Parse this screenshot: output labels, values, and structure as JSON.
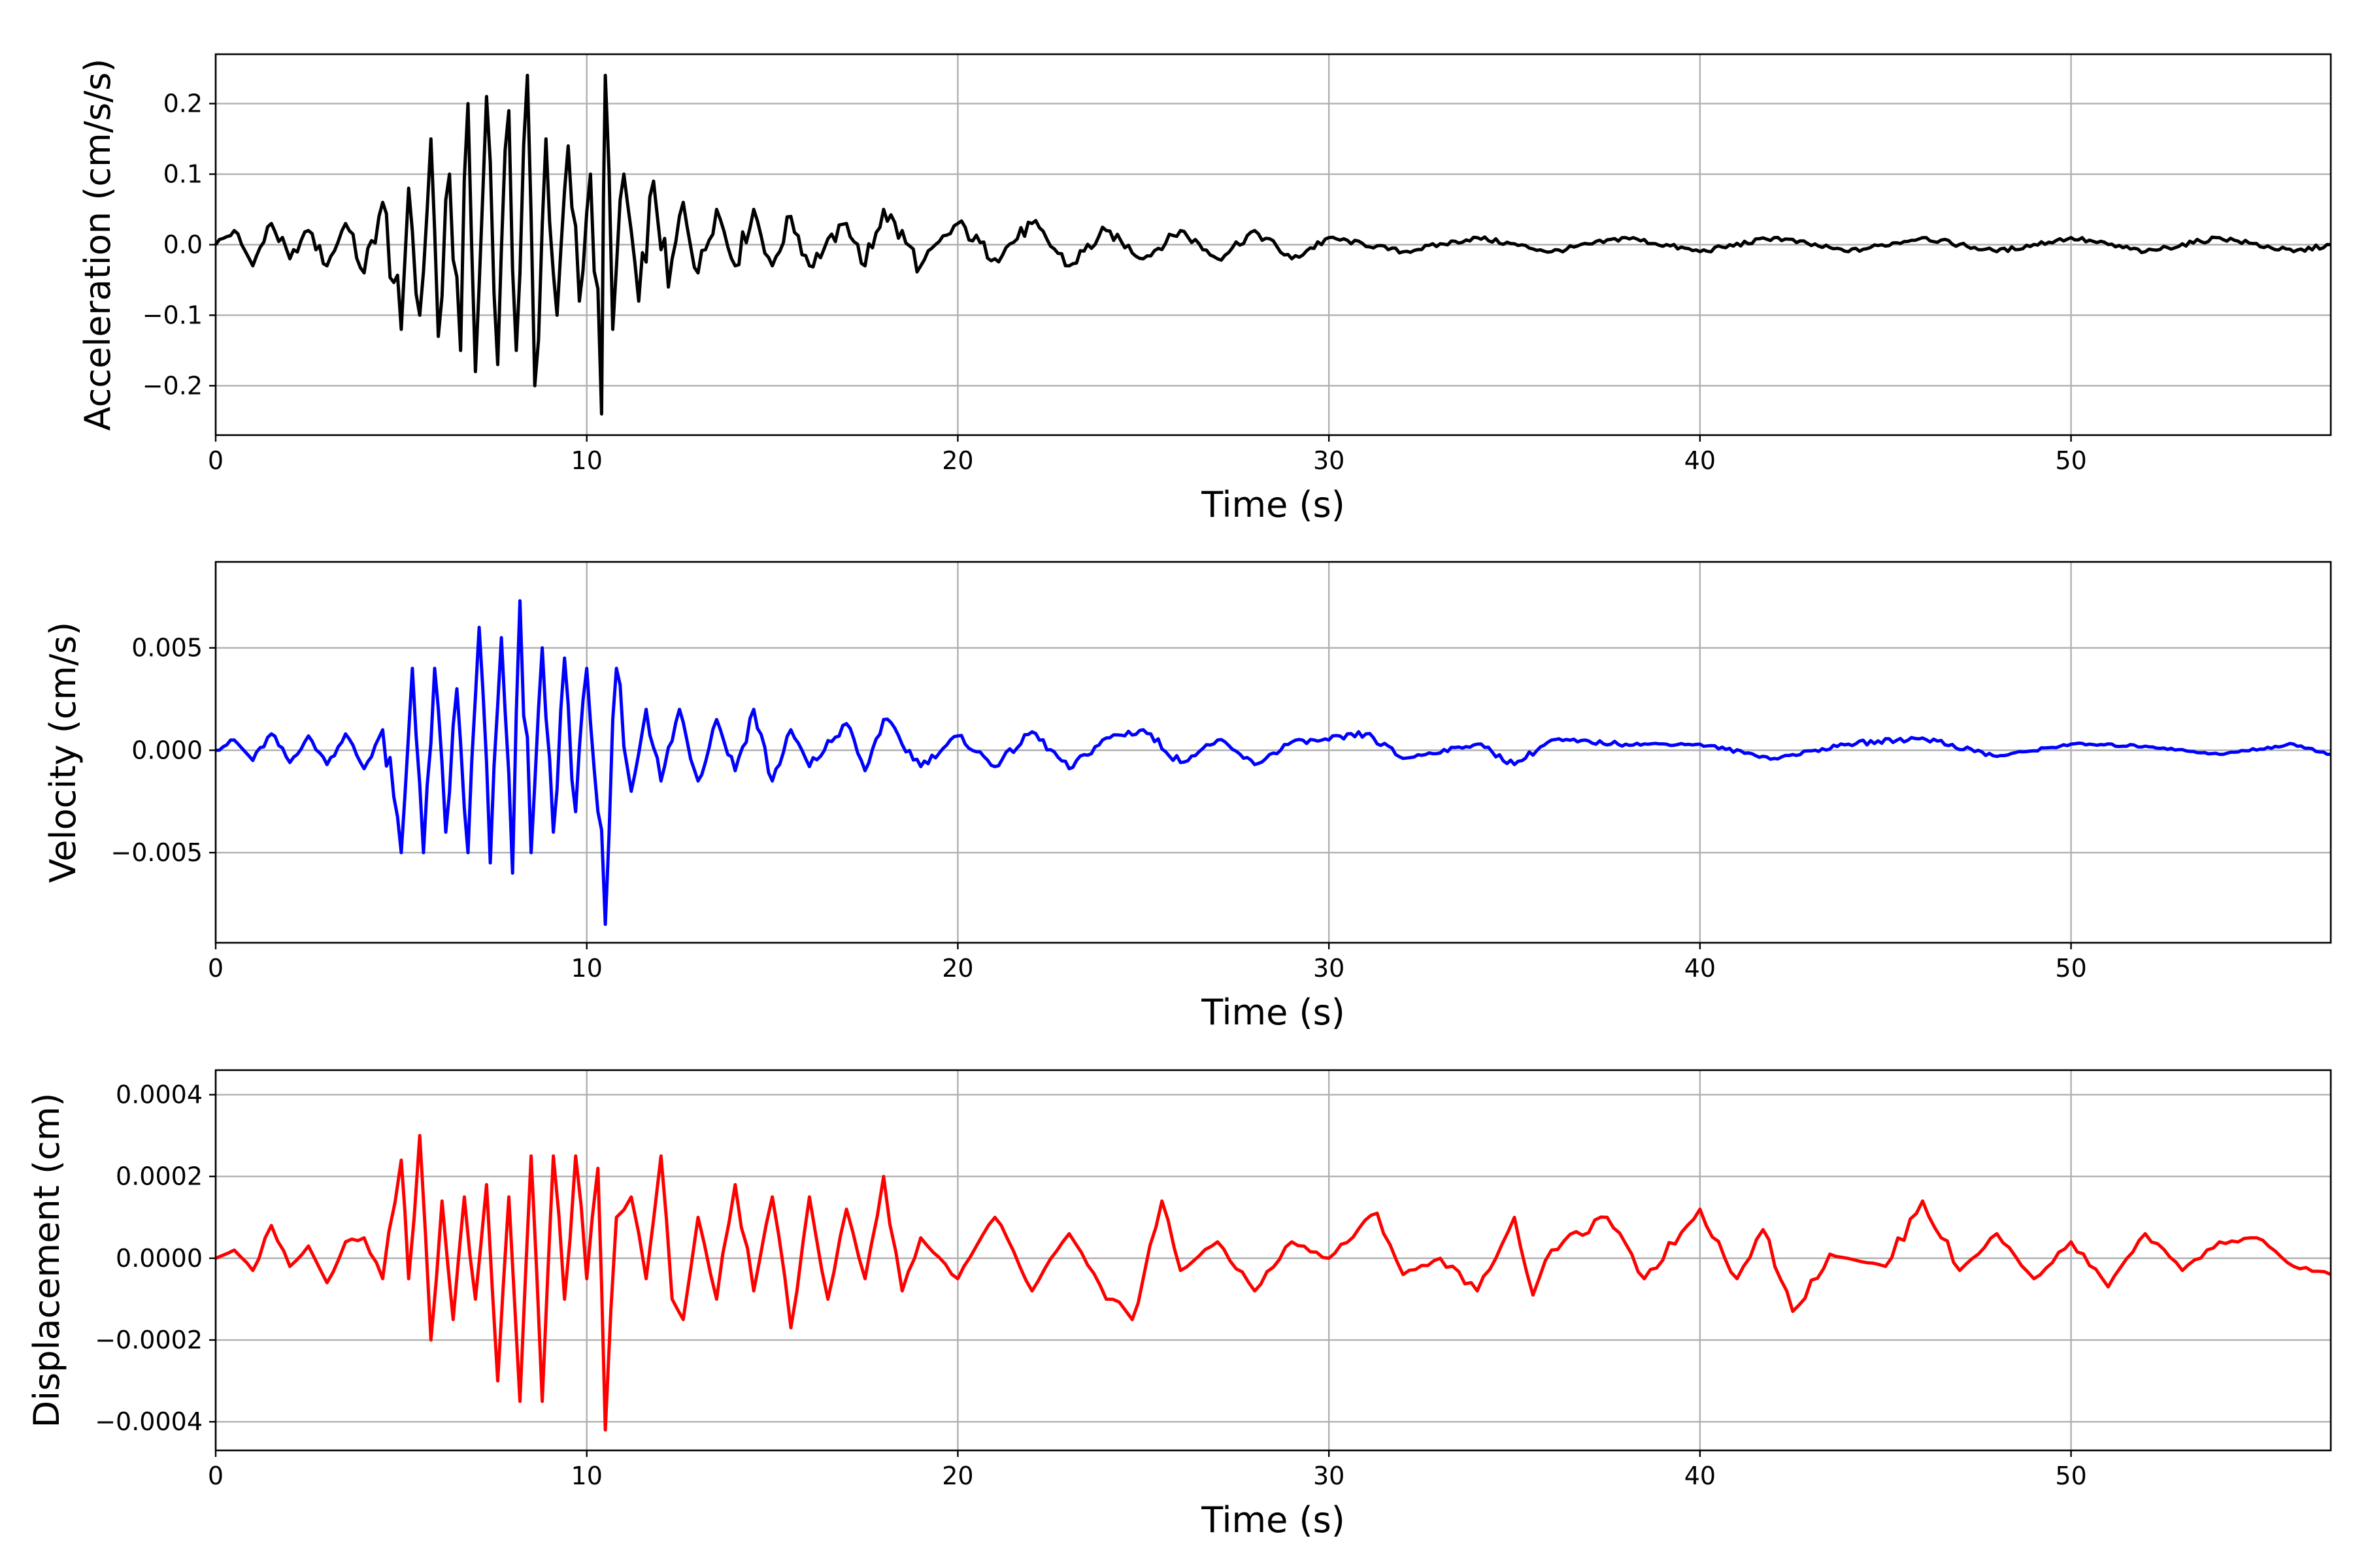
{
  "chart_data": [
    {
      "type": "line",
      "title": "",
      "xlabel": "Time (s)",
      "ylabel": "Acceleration (cm/s/s)",
      "xlim": [
        0,
        57
      ],
      "ylim": [
        -0.27,
        0.27
      ],
      "grid": true,
      "xticks": [
        0,
        10,
        20,
        30,
        40,
        50
      ],
      "xtick_labels": [
        "0",
        "10",
        "20",
        "30",
        "40",
        "50"
      ],
      "yticks": [
        -0.2,
        -0.1,
        0.0,
        0.1,
        0.2
      ],
      "ytick_labels": [
        "−0.2",
        "−0.1",
        "0.0",
        "0.1",
        "0.2"
      ],
      "series": [
        {
          "color": "#000000",
          "x": [
            0,
            0.5,
            1,
            1.5,
            2,
            2.5,
            3,
            3.5,
            4,
            4.5,
            5,
            5.2,
            5.5,
            5.8,
            6,
            6.3,
            6.6,
            6.8,
            7,
            7.3,
            7.6,
            7.9,
            8.1,
            8.4,
            8.6,
            8.9,
            9.2,
            9.5,
            9.8,
            10.1,
            10.4,
            10.5,
            10.7,
            11,
            11.4,
            11.8,
            12.2,
            12.6,
            13,
            13.5,
            14,
            14.5,
            15,
            15.5,
            16,
            17,
            17.5,
            18,
            19,
            20,
            21,
            22,
            23,
            24,
            25,
            26,
            27,
            28,
            29,
            30,
            32,
            34,
            36,
            38,
            40,
            42,
            44,
            46,
            48,
            50,
            52,
            54,
            56,
            57
          ],
          "values": [
            0.0,
            0.02,
            -0.03,
            0.03,
            -0.02,
            0.02,
            -0.03,
            0.03,
            -0.04,
            0.06,
            -0.12,
            0.08,
            -0.1,
            0.15,
            -0.13,
            0.1,
            -0.15,
            0.2,
            -0.18,
            0.21,
            -0.17,
            0.19,
            -0.15,
            0.24,
            -0.2,
            0.15,
            -0.1,
            0.14,
            -0.08,
            0.1,
            -0.24,
            0.24,
            -0.12,
            0.1,
            -0.08,
            0.09,
            -0.06,
            0.06,
            -0.04,
            0.05,
            -0.03,
            0.05,
            -0.03,
            0.04,
            -0.03,
            0.03,
            -0.03,
            0.05,
            -0.03,
            0.03,
            -0.02,
            0.03,
            -0.03,
            0.02,
            -0.02,
            0.02,
            -0.02,
            0.02,
            -0.02,
            0.01,
            -0.01,
            0.01,
            -0.01,
            0.01,
            -0.01,
            0.01,
            -0.01,
            0.01,
            -0.01,
            0.01,
            -0.01,
            0.01,
            -0.01,
            0.0
          ]
        }
      ]
    },
    {
      "type": "line",
      "title": "",
      "xlabel": "Time (s)",
      "ylabel": "Velocity (cm/s)",
      "xlim": [
        0,
        57
      ],
      "ylim": [
        -0.0094,
        0.0092
      ],
      "grid": true,
      "xticks": [
        0,
        10,
        20,
        30,
        40,
        50
      ],
      "xtick_labels": [
        "0",
        "10",
        "20",
        "30",
        "40",
        "50"
      ],
      "yticks": [
        -0.005,
        0.0,
        0.005
      ],
      "ytick_labels": [
        "−0.005",
        "0.000",
        "0.005"
      ],
      "series": [
        {
          "color": "#0000ff",
          "x": [
            0,
            0.5,
            1,
            1.5,
            2,
            2.5,
            3,
            3.5,
            4,
            4.5,
            5,
            5.3,
            5.6,
            5.9,
            6.2,
            6.5,
            6.8,
            7.1,
            7.4,
            7.7,
            8,
            8.2,
            8.5,
            8.8,
            9.1,
            9.4,
            9.7,
            10,
            10.3,
            10.5,
            10.8,
            11.2,
            11.6,
            12,
            12.5,
            13,
            13.5,
            14,
            14.5,
            15,
            15.5,
            16,
            17,
            17.5,
            18,
            19,
            20,
            21,
            22,
            23,
            24,
            25,
            26,
            27,
            28,
            29,
            30,
            31,
            32,
            34,
            35,
            36,
            38,
            40,
            42,
            44,
            46,
            48,
            50,
            52,
            54,
            56,
            57
          ],
          "values": [
            0.0,
            0.0005,
            -0.0005,
            0.0008,
            -0.0006,
            0.0007,
            -0.0007,
            0.0008,
            -0.0009,
            0.001,
            -0.005,
            0.004,
            -0.005,
            0.004,
            -0.004,
            0.003,
            -0.005,
            0.006,
            -0.0055,
            0.0055,
            -0.006,
            0.0073,
            -0.005,
            0.005,
            -0.004,
            0.0045,
            -0.003,
            0.004,
            -0.003,
            -0.0085,
            0.004,
            -0.002,
            0.002,
            -0.0015,
            0.002,
            -0.0015,
            0.0015,
            -0.001,
            0.002,
            -0.0015,
            0.001,
            -0.0008,
            0.0013,
            -0.001,
            0.0015,
            -0.0008,
            0.0007,
            -0.0008,
            0.0009,
            -0.0009,
            0.0006,
            0.001,
            -0.0006,
            0.0005,
            -0.0007,
            0.0004,
            0.0005,
            0.0008,
            -0.0004,
            0.0003,
            -0.0007,
            0.0005,
            0.0003,
            0.0003,
            -0.0004,
            0.0003,
            0.0006,
            -0.0003,
            0.0003,
            0.0002,
            -0.0002,
            0.0003,
            -0.0002
          ]
        }
      ]
    },
    {
      "type": "line",
      "title": "",
      "xlabel": "Time (s)",
      "ylabel": "Displacement (cm)",
      "xlim": [
        0,
        57
      ],
      "ylim": [
        -0.00047,
        0.00046
      ],
      "grid": true,
      "xticks": [
        0,
        10,
        20,
        30,
        40,
        50
      ],
      "xtick_labels": [
        "0",
        "10",
        "20",
        "30",
        "40",
        "50"
      ],
      "yticks": [
        -0.0004,
        -0.0002,
        0.0,
        0.0002,
        0.0004
      ],
      "ytick_labels": [
        "−0.0004",
        "−0.0002",
        "0.0000",
        "0.0002",
        "0.0004"
      ],
      "series": [
        {
          "color": "#ff0000",
          "x": [
            0,
            0.5,
            1,
            1.5,
            2,
            2.5,
            3,
            3.5,
            4,
            4.5,
            5,
            5.2,
            5.5,
            5.8,
            6.1,
            6.4,
            6.7,
            7,
            7.3,
            7.6,
            7.9,
            8.2,
            8.5,
            8.8,
            9.1,
            9.4,
            9.7,
            10,
            10.3,
            10.5,
            10.8,
            11.2,
            11.6,
            12,
            12.3,
            12.6,
            13,
            13.5,
            14,
            14.5,
            15,
            15.5,
            16,
            16.5,
            17,
            17.5,
            18,
            18.5,
            19,
            20,
            21,
            22,
            23,
            24,
            24.7,
            25.5,
            26,
            27,
            28,
            29,
            30,
            31.3,
            32,
            33,
            34,
            35,
            35.5,
            36,
            37.5,
            38.5,
            40,
            41,
            41.7,
            42.5,
            43.5,
            45,
            46,
            47,
            48,
            49,
            50,
            51,
            52,
            53,
            54,
            55,
            56,
            57
          ],
          "values": [
            0.0,
            2e-05,
            -3e-05,
            8e-05,
            -2e-05,
            3e-05,
            -6e-05,
            4e-05,
            5e-05,
            -5e-05,
            0.00024,
            -5e-05,
            0.0003,
            -0.0002,
            0.00014,
            -0.00015,
            0.00015,
            -0.0001,
            0.00018,
            -0.0003,
            0.00015,
            -0.00035,
            0.00025,
            -0.00035,
            0.00025,
            -0.0001,
            0.00025,
            -5e-05,
            0.00022,
            -0.00042,
            0.0001,
            0.00015,
            -5e-05,
            0.00025,
            -0.0001,
            -0.00015,
            0.0001,
            -0.0001,
            0.00018,
            -8e-05,
            0.00015,
            -0.00017,
            0.00015,
            -0.0001,
            0.00012,
            -5e-05,
            0.0002,
            -8e-05,
            5e-05,
            -5e-05,
            0.0001,
            -8e-05,
            6e-05,
            -0.0001,
            -0.00015,
            0.00014,
            -3e-05,
            4e-05,
            -8e-05,
            4e-05,
            0.0,
            0.00011,
            -4e-05,
            0.0,
            -8e-05,
            0.0001,
            -9e-05,
            2e-05,
            0.0001,
            -5e-05,
            0.00012,
            -5e-05,
            7e-05,
            -0.00013,
            1e-05,
            -2e-05,
            0.00014,
            -3e-05,
            6e-05,
            -5e-05,
            4e-05,
            -7e-05,
            6e-05,
            -3e-05,
            4e-05,
            5e-05,
            -2e-05,
            -4e-05
          ]
        }
      ]
    }
  ]
}
